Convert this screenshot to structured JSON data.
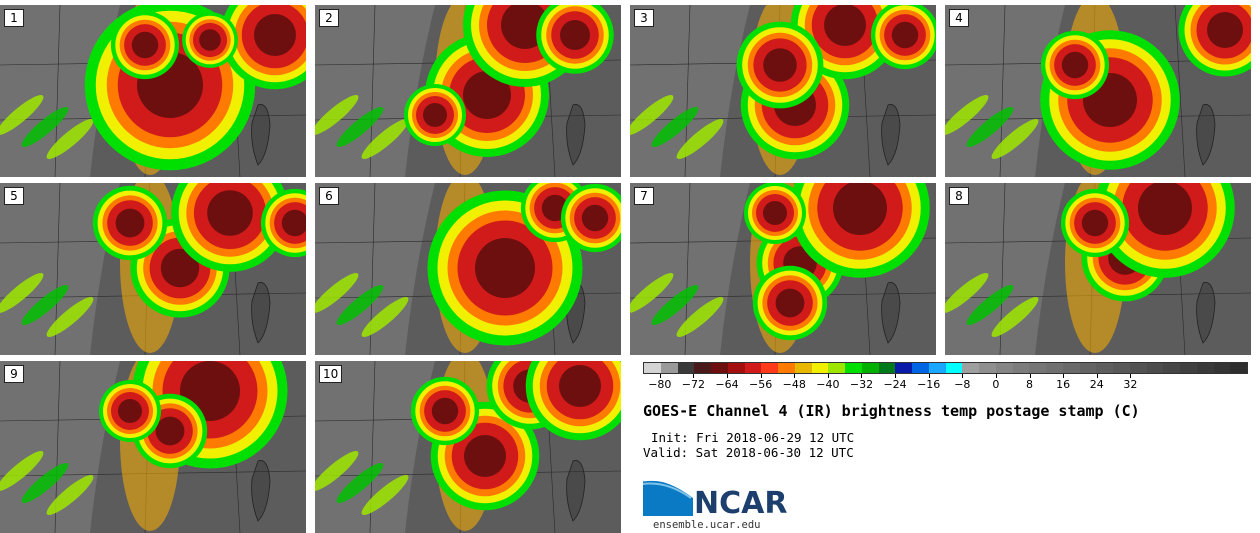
{
  "panels": [
    {
      "label": "1"
    },
    {
      "label": "2"
    },
    {
      "label": "3"
    },
    {
      "label": "4"
    },
    {
      "label": "5"
    },
    {
      "label": "6"
    },
    {
      "label": "7"
    },
    {
      "label": "8"
    },
    {
      "label": "9"
    },
    {
      "label": "10"
    }
  ],
  "colorbar": {
    "colors": [
      "#d4d4d4",
      "#9a9a9a",
      "#3a3a3a",
      "#4a1a1a",
      "#6e0f0f",
      "#a30f0f",
      "#d11a1a",
      "#ff3a1a",
      "#ff7a00",
      "#e8b800",
      "#f0f000",
      "#9ee600",
      "#00e000",
      "#00b000",
      "#007a1a",
      "#0a1aa8",
      "#0066e6",
      "#1aa8ff",
      "#00ffff",
      "#9f9f9f",
      "#8f8f8f",
      "#858585",
      "#7d7d7d",
      "#767676",
      "#707070",
      "#6a6a6a",
      "#646464",
      "#5e5e5e",
      "#585858",
      "#525252",
      "#4c4c4c",
      "#464646",
      "#404040",
      "#3a3a3a",
      "#343434",
      "#2e2e2e"
    ],
    "tick_labels": [
      "−80",
      "−72",
      "−64",
      "−56",
      "−48",
      "−40",
      "−32",
      "−24",
      "−16",
      "−8",
      "0",
      "8",
      "16",
      "24",
      "32"
    ]
  },
  "title": "GOES-E Channel 4 (IR) brightness temp postage stamp (C)",
  "init": "Init: Fri 2018-06-29 12 UTC",
  "valid": "Valid: Sat 2018-06-30 12 UTC",
  "logo": {
    "name": "NCAR",
    "colors": [
      "#1c3f6e",
      "#0a7ac4"
    ]
  },
  "url": "ensemble.ucar.edu"
}
